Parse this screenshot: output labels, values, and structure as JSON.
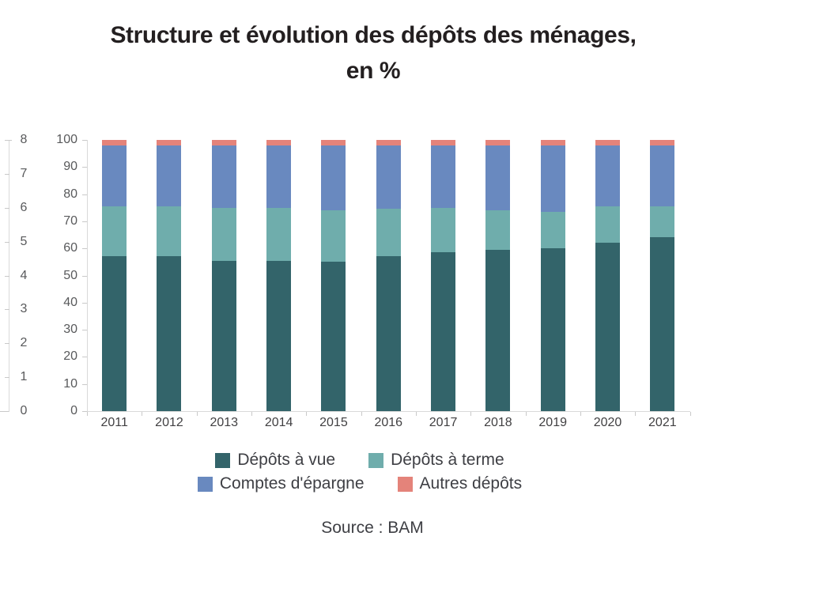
{
  "title": {
    "line1": "Structure et évolution des dépôts des ménages,",
    "line2": "en %"
  },
  "source_label": "Source : BAM",
  "axes": {
    "secondary_y": {
      "min": 0,
      "max": 8,
      "ticks": [
        "8",
        "7",
        "6",
        "5",
        "4",
        "3",
        "2",
        "1",
        "0"
      ]
    },
    "primary_y": {
      "min": 0,
      "max": 100,
      "ticks": [
        "100",
        "90",
        "80",
        "70",
        "60",
        "50",
        "40",
        "30",
        "20",
        "10",
        "0"
      ]
    }
  },
  "legend": {
    "items": [
      {
        "label": "Dépôts à vue",
        "color": "#33646a"
      },
      {
        "label": "Dépôts à terme",
        "color": "#6fadac"
      },
      {
        "label": "Comptes d'épargne",
        "color": "#6989bf"
      },
      {
        "label": "Autres dépôts",
        "color": "#e4837a"
      }
    ]
  },
  "chart_data": {
    "type": "bar",
    "stacked": true,
    "title": "Structure et évolution des dépôts des ménages, en %",
    "categories": [
      "2011",
      "2012",
      "2013",
      "2014",
      "2015",
      "2016",
      "2017",
      "2018",
      "2019",
      "2020",
      "2021"
    ],
    "series": [
      {
        "name": "Dépôts à vue",
        "color": "#33646a",
        "values": [
          57,
          57,
          55.5,
          55.5,
          55,
          57,
          58.5,
          59.5,
          60,
          62,
          64
        ]
      },
      {
        "name": "Dépôts à terme",
        "color": "#6fadac",
        "values": [
          18.5,
          18.5,
          19.5,
          19.5,
          19,
          17.5,
          16.5,
          14.5,
          13.5,
          13.5,
          11.5
        ]
      },
      {
        "name": "Comptes d'épargne",
        "color": "#6989bf",
        "values": [
          22.5,
          22.5,
          23,
          23,
          24,
          23.5,
          23,
          24,
          24.5,
          22.5,
          22.5
        ]
      },
      {
        "name": "Autres dépôts",
        "color": "#e4837a",
        "values": [
          2,
          2,
          2,
          2,
          2,
          2,
          2,
          2,
          2,
          2,
          2
        ]
      }
    ],
    "xlabel": "",
    "ylabel": "",
    "ylim": [
      0,
      100
    ],
    "secondary_ylim": [
      0,
      8
    ],
    "grid": false,
    "legend_position": "bottom",
    "source": "Source : BAM"
  }
}
